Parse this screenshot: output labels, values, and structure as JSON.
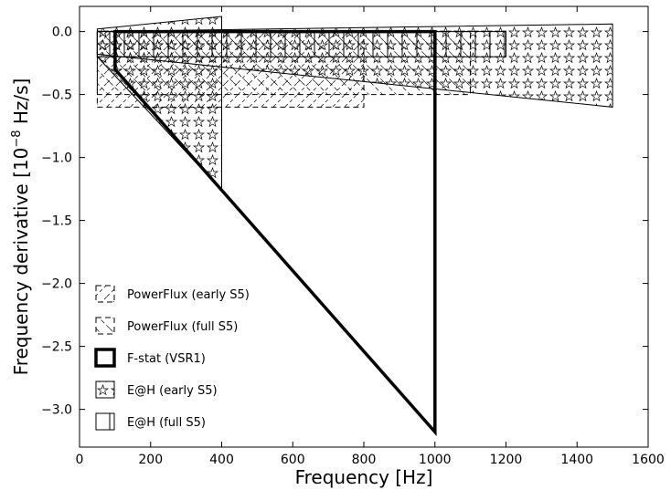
{
  "chart_data": {
    "type": "area",
    "title": "",
    "xlabel": "Frequency [Hz]",
    "ylabel_main": "Frequency derivative [10",
    "ylabel_exp": "−8",
    "ylabel_tail": " Hz/s]",
    "xlim": [
      0,
      1600
    ],
    "ylim": [
      -3.3,
      0.2
    ],
    "x_ticks": [
      0,
      200,
      400,
      600,
      800,
      1000,
      1200,
      1400,
      1600
    ],
    "x_tick_labels": [
      "0",
      "200",
      "400",
      "600",
      "800",
      "1000",
      "1200",
      "1400",
      "1600"
    ],
    "y_ticks": [
      0.0,
      -0.5,
      -1.0,
      -1.5,
      -2.0,
      -2.5,
      -3.0
    ],
    "y_tick_labels": [
      "0.0",
      "−0.5",
      "−1.0",
      "−1.5",
      "−2.0",
      "−2.5",
      "−3.0"
    ],
    "grid": false,
    "legend_position": "lower-left",
    "series": [
      {
        "name": "PowerFlux (early S5)",
        "style": "dashed-box-diag",
        "regions": [
          [
            [
              50,
              0.0
            ],
            [
              800,
              0.0
            ],
            [
              800,
              -0.6
            ],
            [
              50,
              -0.6
            ]
          ]
        ]
      },
      {
        "name": "PowerFlux (full S5)",
        "style": "dashed-box-diag2",
        "regions": [
          [
            [
              50,
              0.0
            ],
            [
              1100,
              0.0
            ],
            [
              1100,
              -0.5
            ],
            [
              50,
              -0.5
            ]
          ]
        ]
      },
      {
        "name": "F-stat (VSR1)",
        "style": "thick-outline",
        "regions": [
          [
            [
              100,
              0.0
            ],
            [
              1000,
              0.0
            ],
            [
              1000,
              -3.18
            ],
            [
              100,
              -0.3
            ]
          ]
        ]
      },
      {
        "name": "E@H (early S5)",
        "style": "stars",
        "regions": [
          [
            [
              50,
              0.02
            ],
            [
              400,
              0.12
            ],
            [
              400,
              -1.26
            ],
            [
              50,
              -0.2
            ]
          ],
          [
            [
              50,
              0.0
            ],
            [
              1500,
              0.06
            ],
            [
              1500,
              -0.6
            ],
            [
              50,
              -0.18
            ]
          ]
        ]
      },
      {
        "name": "E@H (full S5)",
        "style": "vlines",
        "regions": [
          [
            [
              50,
              0.0
            ],
            [
              1200,
              0.0
            ],
            [
              1200,
              -0.2
            ],
            [
              50,
              -0.2
            ]
          ]
        ]
      }
    ]
  }
}
